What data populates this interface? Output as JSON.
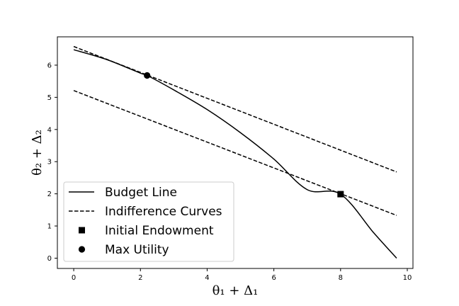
{
  "chart_data": {
    "type": "line",
    "title": "",
    "xlabel": "θ₁ + Δ₁",
    "ylabel": "θ₂ + Δ₂",
    "xlim": [
      -0.49,
      10.17
    ],
    "ylim": [
      -0.32,
      6.88
    ],
    "xticks": [
      0,
      2,
      4,
      6,
      8,
      10
    ],
    "yticks": [
      0,
      1,
      2,
      3,
      4,
      5,
      6
    ],
    "grid": false,
    "legend_position": "lower-left",
    "series": [
      {
        "name": "Budget Line",
        "style": "solid",
        "color": "#000000",
        "x": [
          0,
          1,
          2,
          2.2,
          3,
          4,
          5,
          6,
          7,
          8,
          9,
          9.68
        ],
        "y": [
          6.48,
          6.17,
          5.75,
          5.68,
          5.23,
          4.62,
          3.9,
          3.08,
          2.13,
          1.99,
          0.78,
          0.0
        ]
      },
      {
        "name": "Indifference Curves",
        "style": "dashed",
        "color": "#000000",
        "x": [
          0,
          9.68
        ],
        "y": [
          6.58,
          2.68
        ]
      },
      {
        "name": "",
        "style": "dashed",
        "color": "#000000",
        "x": [
          0,
          9.68
        ],
        "y": [
          5.21,
          1.33
        ]
      }
    ],
    "points": [
      {
        "name": "Initial Endowment",
        "marker": "square",
        "x": 8.0,
        "y": 1.99
      },
      {
        "name": "Max Utility",
        "marker": "circle",
        "x": 2.2,
        "y": 5.68
      }
    ],
    "legend": [
      {
        "label": "Budget Line",
        "symbol": "solid-line"
      },
      {
        "label": "Indifference Curves",
        "symbol": "dashed-line"
      },
      {
        "label": "Initial Endowment",
        "symbol": "square"
      },
      {
        "label": "Max Utility",
        "symbol": "circle"
      }
    ]
  }
}
